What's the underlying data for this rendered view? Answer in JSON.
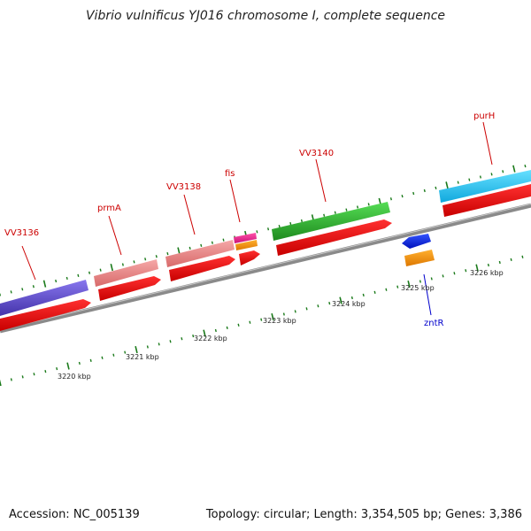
{
  "title": "Vibrio vulnificus YJ016 chromosome I, complete sequence",
  "accession": "Accession: NC_005139",
  "topology": "Topology: circular; Length: 3,354,505 bp; Genes: 3,386",
  "colors": {
    "backbone": "#8a8a8a",
    "tick": "#1a7a1a",
    "gene_label": "#cc0000",
    "minus_label": "#0000cc"
  },
  "scale_labels": [
    {
      "text": "3220 kbp",
      "kbp": 3220
    },
    {
      "text": "3221 kbp",
      "kbp": 3221
    },
    {
      "text": "3222 kbp",
      "kbp": 3222
    },
    {
      "text": "3223 kbp",
      "kbp": 3223
    },
    {
      "text": "3224 kbp",
      "kbp": 3224
    },
    {
      "text": "3225 kbp",
      "kbp": 3225
    },
    {
      "text": "3226 kbp",
      "kbp": 3226
    }
  ],
  "genes": [
    {
      "name": "VV3136",
      "strand": "plus",
      "color": "#6655cc"
    },
    {
      "name": "prmA",
      "strand": "plus",
      "color": "#ee8888"
    },
    {
      "name": "VV3138",
      "strand": "plus",
      "color": "#ee8888"
    },
    {
      "name": "fis",
      "strand": "plus",
      "color": "#ee2288"
    },
    {
      "name": "VV3140",
      "strand": "plus",
      "color": "#33bb33"
    },
    {
      "name": "zntR",
      "strand": "minus",
      "color": "#ff9900"
    },
    {
      "name": "purH",
      "strand": "plus",
      "color": "#22ccff"
    }
  ]
}
